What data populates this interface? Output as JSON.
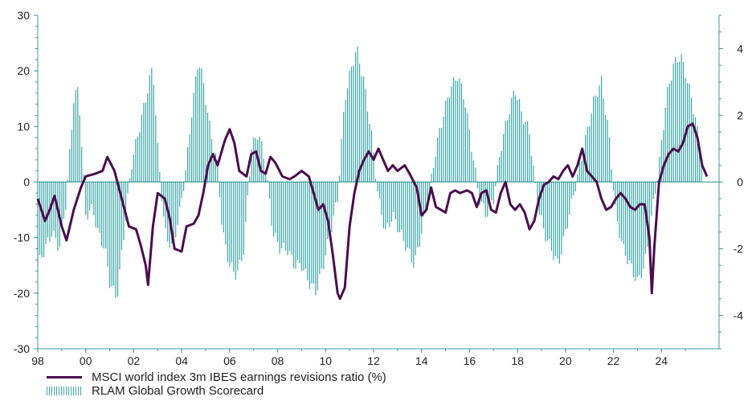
{
  "legend": {
    "line_label": "MSCI world index 3m IBES earnings revisions ratio (%)",
    "bar_label": "RLAM Global Growth Scorecard"
  },
  "colors": {
    "line": "#4b0d4f",
    "bars": "#3fa7a7",
    "axis": "#3a9a9a",
    "zero_line": "#2f8f8f"
  },
  "chart_data": {
    "type": "line",
    "title": "",
    "x_tick_labels": [
      "98",
      "00",
      "02",
      "04",
      "06",
      "08",
      "10",
      "12",
      "14",
      "16",
      "18",
      "20",
      "22",
      "24"
    ],
    "x_tick_years": [
      1998,
      2000,
      2002,
      2004,
      2006,
      2008,
      2010,
      2012,
      2014,
      2016,
      2018,
      2020,
      2022,
      2024
    ],
    "xlim": [
      1998,
      2025.9
    ],
    "y_left": {
      "ticks": [
        30,
        20,
        10,
        0,
        -10,
        -20,
        -30
      ],
      "lim": [
        -30,
        30
      ]
    },
    "y_right": {
      "ticks": [
        4,
        2,
        0,
        -2,
        -4
      ],
      "lim": [
        -5,
        5
      ]
    },
    "series": [
      {
        "name": "MSCI world index 3m IBES earnings revisions ratio (%)",
        "axis": "left",
        "style": "line",
        "points": [
          [
            1998.0,
            -3
          ],
          [
            1998.3,
            -7
          ],
          [
            1998.5,
            -5
          ],
          [
            1998.7,
            -2.5
          ],
          [
            1999.0,
            -8
          ],
          [
            1999.2,
            -10.5
          ],
          [
            1999.5,
            -5
          ],
          [
            1999.8,
            -1
          ],
          [
            2000.0,
            1
          ],
          [
            2000.4,
            1.5
          ],
          [
            2000.7,
            2
          ],
          [
            2000.9,
            4.5
          ],
          [
            2001.2,
            2
          ],
          [
            2001.5,
            -3
          ],
          [
            2001.8,
            -8
          ],
          [
            2002.1,
            -8.5
          ],
          [
            2002.3,
            -11.5
          ],
          [
            2002.5,
            -15
          ],
          [
            2002.6,
            -18.5
          ],
          [
            2002.8,
            -8
          ],
          [
            2003.0,
            -2
          ],
          [
            2003.3,
            -3
          ],
          [
            2003.5,
            -6.5
          ],
          [
            2003.7,
            -12
          ],
          [
            2004.0,
            -12.5
          ],
          [
            2004.2,
            -8
          ],
          [
            2004.5,
            -7.5
          ],
          [
            2004.7,
            -6
          ],
          [
            2004.9,
            -2
          ],
          [
            2005.1,
            3
          ],
          [
            2005.3,
            5
          ],
          [
            2005.5,
            3
          ],
          [
            2005.8,
            7.5
          ],
          [
            2006.0,
            9.5
          ],
          [
            2006.2,
            7
          ],
          [
            2006.4,
            2
          ],
          [
            2006.7,
            1
          ],
          [
            2006.9,
            5
          ],
          [
            2007.1,
            5.5
          ],
          [
            2007.3,
            2
          ],
          [
            2007.5,
            1.5
          ],
          [
            2007.7,
            4.5
          ],
          [
            2007.9,
            3.5
          ],
          [
            2008.2,
            1
          ],
          [
            2008.5,
            0.5
          ],
          [
            2008.7,
            1
          ],
          [
            2009.0,
            2
          ],
          [
            2009.3,
            1
          ],
          [
            2009.5,
            -2
          ],
          [
            2009.7,
            -5
          ],
          [
            2009.9,
            -4
          ],
          [
            2010.1,
            -7
          ],
          [
            2010.3,
            -13
          ],
          [
            2010.5,
            -20
          ],
          [
            2010.6,
            -21
          ],
          [
            2010.8,
            -19
          ],
          [
            2011.0,
            -8
          ],
          [
            2011.2,
            -2
          ],
          [
            2011.4,
            2
          ],
          [
            2011.6,
            4
          ],
          [
            2011.8,
            5.5
          ],
          [
            2012.0,
            4
          ],
          [
            2012.2,
            6
          ],
          [
            2012.4,
            4
          ],
          [
            2012.6,
            2
          ],
          [
            2012.8,
            3
          ],
          [
            2013.0,
            2
          ],
          [
            2013.3,
            3
          ],
          [
            2013.5,
            1.5
          ],
          [
            2013.8,
            -1
          ],
          [
            2014.0,
            -6
          ],
          [
            2014.2,
            -5
          ],
          [
            2014.4,
            -1
          ],
          [
            2014.6,
            -4.5
          ],
          [
            2014.8,
            -5
          ],
          [
            2015.0,
            -5.5
          ],
          [
            2015.2,
            -2
          ],
          [
            2015.4,
            -1.5
          ],
          [
            2015.6,
            -2
          ],
          [
            2015.9,
            -1.5
          ],
          [
            2016.1,
            -2
          ],
          [
            2016.3,
            -4.5
          ],
          [
            2016.5,
            -2
          ],
          [
            2016.7,
            -1.5
          ],
          [
            2016.9,
            -5
          ],
          [
            2017.1,
            -5.5
          ],
          [
            2017.3,
            -2
          ],
          [
            2017.5,
            0
          ],
          [
            2017.7,
            -4
          ],
          [
            2017.9,
            -5
          ],
          [
            2018.1,
            -4
          ],
          [
            2018.3,
            -5.5
          ],
          [
            2018.5,
            -8.5
          ],
          [
            2018.7,
            -7
          ],
          [
            2018.9,
            -3
          ],
          [
            2019.1,
            -0.5
          ],
          [
            2019.3,
            0
          ],
          [
            2019.5,
            1
          ],
          [
            2019.7,
            0.5
          ],
          [
            2019.9,
            2
          ],
          [
            2020.1,
            3
          ],
          [
            2020.3,
            1
          ],
          [
            2020.5,
            3
          ],
          [
            2020.7,
            6
          ],
          [
            2020.9,
            2
          ],
          [
            2021.1,
            1
          ],
          [
            2021.3,
            0
          ],
          [
            2021.5,
            -3
          ],
          [
            2021.7,
            -5
          ],
          [
            2021.9,
            -4.5
          ],
          [
            2022.1,
            -3
          ],
          [
            2022.3,
            -2
          ],
          [
            2022.5,
            -3
          ],
          [
            2022.7,
            -4.5
          ],
          [
            2022.9,
            -5
          ],
          [
            2023.1,
            -4
          ],
          [
            2023.3,
            -4
          ],
          [
            2023.5,
            -10
          ],
          [
            2023.6,
            -20
          ],
          [
            2023.7,
            -12
          ],
          [
            2023.9,
            0
          ],
          [
            2024.1,
            3
          ],
          [
            2024.3,
            5
          ],
          [
            2024.5,
            6
          ],
          [
            2024.7,
            5.5
          ],
          [
            2024.9,
            7
          ],
          [
            2025.1,
            10
          ],
          [
            2025.3,
            10.5
          ],
          [
            2025.5,
            8
          ],
          [
            2025.7,
            3
          ],
          [
            2025.9,
            1
          ]
        ],
        "note_x_years_are_positions_on_axis": false
      },
      {
        "name": "RLAM Global Growth Scorecard",
        "axis": "right",
        "style": "bar",
        "points": [
          [
            1998.0,
            -2.5
          ],
          [
            1998.3,
            -2
          ],
          [
            1998.6,
            -1.5
          ],
          [
            1998.9,
            -2
          ],
          [
            1999.2,
            -0.5
          ],
          [
            1999.5,
            2.5
          ],
          [
            1999.7,
            2.8
          ],
          [
            2000.0,
            -1
          ],
          [
            2000.3,
            -0.8
          ],
          [
            2000.5,
            -1.5
          ],
          [
            2000.8,
            -2
          ],
          [
            2001.0,
            -3
          ],
          [
            2001.3,
            -3.5
          ],
          [
            2001.6,
            -1.5
          ],
          [
            2001.9,
            0.5
          ],
          [
            2002.2,
            1.5
          ],
          [
            2002.5,
            2.5
          ],
          [
            2002.8,
            3.5
          ],
          [
            2003.0,
            1
          ],
          [
            2003.3,
            -1.5
          ],
          [
            2003.6,
            -2
          ],
          [
            2003.9,
            -1
          ],
          [
            2004.2,
            0.5
          ],
          [
            2004.4,
            2
          ],
          [
            2004.7,
            3.7
          ],
          [
            2004.9,
            3
          ],
          [
            2005.2,
            1.5
          ],
          [
            2005.5,
            0.5
          ],
          [
            2005.7,
            -1.5
          ],
          [
            2006.0,
            -2.5
          ],
          [
            2006.3,
            -2.8
          ],
          [
            2006.6,
            -2
          ],
          [
            2006.9,
            1
          ],
          [
            2007.2,
            1.5
          ],
          [
            2007.5,
            0.5
          ],
          [
            2007.8,
            -1.5
          ],
          [
            2008.1,
            -2
          ],
          [
            2008.4,
            -2
          ],
          [
            2008.7,
            -2.5
          ],
          [
            2009.0,
            -2.5
          ],
          [
            2009.3,
            -3
          ],
          [
            2009.6,
            -3.3
          ],
          [
            2009.9,
            -2.5
          ],
          [
            2010.2,
            -1.5
          ],
          [
            2010.5,
            -0.5
          ],
          [
            2010.8,
            2.5
          ],
          [
            2011.1,
            3.5
          ],
          [
            2011.3,
            4
          ],
          [
            2011.6,
            3
          ],
          [
            2011.9,
            1.5
          ],
          [
            2012.2,
            -0.5
          ],
          [
            2012.5,
            -1.5
          ],
          [
            2012.8,
            -1
          ],
          [
            2013.1,
            -1.5
          ],
          [
            2013.4,
            -2
          ],
          [
            2013.7,
            -2.5
          ],
          [
            2014.0,
            -1.5
          ],
          [
            2014.3,
            -0.5
          ],
          [
            2014.6,
            1
          ],
          [
            2014.9,
            2
          ],
          [
            2015.2,
            2.8
          ],
          [
            2015.5,
            3.2
          ],
          [
            2015.8,
            2.5
          ],
          [
            2016.1,
            1
          ],
          [
            2016.4,
            -0.5
          ],
          [
            2016.7,
            -1
          ],
          [
            2017.0,
            -0.5
          ],
          [
            2017.3,
            1
          ],
          [
            2017.6,
            2
          ],
          [
            2017.9,
            2.8
          ],
          [
            2018.2,
            2
          ],
          [
            2018.5,
            1.5
          ],
          [
            2018.8,
            -0.5
          ],
          [
            2019.1,
            -1.5
          ],
          [
            2019.4,
            -2
          ],
          [
            2019.7,
            -2.5
          ],
          [
            2020.0,
            -1.5
          ],
          [
            2020.3,
            -0.5
          ],
          [
            2020.6,
            0.5
          ],
          [
            2020.9,
            1.5
          ],
          [
            2021.2,
            2.5
          ],
          [
            2021.5,
            3
          ],
          [
            2021.8,
            1.5
          ],
          [
            2022.1,
            -1
          ],
          [
            2022.4,
            -2
          ],
          [
            2022.7,
            -2.5
          ],
          [
            2023.0,
            -3
          ],
          [
            2023.3,
            -2.5
          ],
          [
            2023.6,
            -1
          ],
          [
            2023.9,
            0.5
          ],
          [
            2024.2,
            2.5
          ],
          [
            2024.5,
            3.5
          ],
          [
            2024.8,
            3.8
          ],
          [
            2025.1,
            3
          ],
          [
            2025.4,
            2
          ],
          [
            2025.7,
            0.5
          ]
        ]
      }
    ],
    "x_labels_position": "bottom",
    "legend_position": "bottom-left",
    "grid": false
  }
}
